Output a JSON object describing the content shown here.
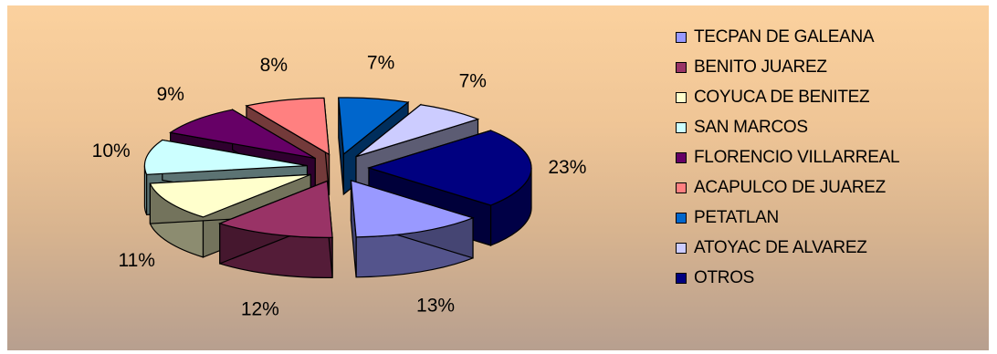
{
  "chart_data": {
    "type": "pie",
    "style": "3d-exploded",
    "title": "",
    "legend_position": "right",
    "slices": [
      {
        "label": "TECPAN DE GALEANA",
        "value": 13,
        "value_label": "13%",
        "color": "#9999ff"
      },
      {
        "label": "BENITO JUAREZ",
        "value": 12,
        "value_label": "12%",
        "color": "#993366"
      },
      {
        "label": "COYUCA DE BENITEZ",
        "value": 11,
        "value_label": "11%",
        "color": "#ffffcc"
      },
      {
        "label": "SAN MARCOS",
        "value": 10,
        "value_label": "10%",
        "color": "#ccffff"
      },
      {
        "label": "FLORENCIO VILLARREAL",
        "value": 9,
        "value_label": "9%",
        "color": "#660066"
      },
      {
        "label": "ACAPULCO DE JUAREZ",
        "value": 8,
        "value_label": "8%",
        "color": "#ff8080"
      },
      {
        "label": "PETATLAN",
        "value": 7,
        "value_label": "7%",
        "color": "#0066cc"
      },
      {
        "label": "ATOYAC DE ALVAREZ",
        "value": 7,
        "value_label": "7%",
        "color": "#ccccff"
      },
      {
        "label": "OTROS",
        "value": 23,
        "value_label": "23%",
        "color": "#000080"
      }
    ]
  }
}
